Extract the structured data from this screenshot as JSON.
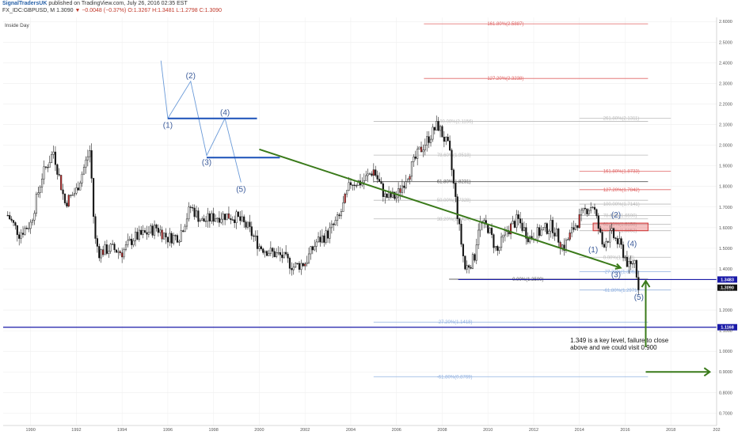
{
  "header": {
    "author": "SignalTradersUK",
    "published": "published on TradingView.com, July 26, 2016 02:35 EST",
    "symbol": "FX_IDC:GBPUSD, M",
    "last": "1.3090",
    "change": "▼ −0.0048 (−0.37%)",
    "ohlc": "O:1.3267 H:1.3481 L:1.2798 C:1.3090"
  },
  "indicator_label": "Inside Day",
  "chart_data": {
    "type": "candlestick",
    "symbol": "GBPUSD",
    "timeframe": "Monthly",
    "x_ticks": [
      "1990",
      "1992",
      "1994",
      "1996",
      "1998",
      "2000",
      "2002",
      "2004",
      "2006",
      "2008",
      "2010",
      "2012",
      "2014",
      "2016",
      "2018",
      "202"
    ],
    "y_ticks": [
      "2.6000",
      "2.5000",
      "2.4000",
      "2.3000",
      "2.2000",
      "2.1000",
      "2.0000",
      "1.9000",
      "1.8000",
      "1.7000",
      "1.6000",
      "1.5000",
      "1.4000",
      "1.3000",
      "1.2000",
      "1.1000",
      "1.0000",
      "0.9000",
      "0.8000",
      "0.7000"
    ],
    "ylim": [
      0.64,
      2.62
    ],
    "xlim": [
      1988.8,
      2020.0
    ],
    "price_path": [
      [
        1989.0,
        1.66
      ],
      [
        1989.5,
        1.57
      ],
      [
        1990.0,
        1.62
      ],
      [
        1990.5,
        1.85
      ],
      [
        1991.0,
        1.97
      ],
      [
        1991.5,
        1.72
      ],
      [
        1992.0,
        1.78
      ],
      [
        1992.6,
        1.98
      ],
      [
        1992.8,
        1.55
      ],
      [
        1993.0,
        1.48
      ],
      [
        1993.5,
        1.5
      ],
      [
        1994.0,
        1.48
      ],
      [
        1994.5,
        1.55
      ],
      [
        1995.0,
        1.57
      ],
      [
        1995.5,
        1.6
      ],
      [
        1996.0,
        1.55
      ],
      [
        1996.5,
        1.56
      ],
      [
        1997.0,
        1.7
      ],
      [
        1997.5,
        1.63
      ],
      [
        1998.0,
        1.65
      ],
      [
        1998.5,
        1.66
      ],
      [
        1999.0,
        1.65
      ],
      [
        1999.5,
        1.6
      ],
      [
        2000.0,
        1.51
      ],
      [
        2000.5,
        1.48
      ],
      [
        2001.0,
        1.46
      ],
      [
        2001.5,
        1.41
      ],
      [
        2002.0,
        1.43
      ],
      [
        2002.5,
        1.53
      ],
      [
        2003.0,
        1.57
      ],
      [
        2003.5,
        1.65
      ],
      [
        2004.0,
        1.82
      ],
      [
        2004.5,
        1.82
      ],
      [
        2005.0,
        1.88
      ],
      [
        2005.5,
        1.75
      ],
      [
        2006.0,
        1.75
      ],
      [
        2006.5,
        1.86
      ],
      [
        2007.0,
        1.97
      ],
      [
        2007.5,
        2.05
      ],
      [
        2007.8,
        2.1
      ],
      [
        2008.3,
        1.98
      ],
      [
        2008.8,
        1.55
      ],
      [
        2009.0,
        1.4
      ],
      [
        2009.4,
        1.45
      ],
      [
        2009.6,
        1.62
      ],
      [
        2010.0,
        1.6
      ],
      [
        2010.4,
        1.48
      ],
      [
        2010.8,
        1.58
      ],
      [
        2011.3,
        1.64
      ],
      [
        2011.8,
        1.55
      ],
      [
        2012.3,
        1.58
      ],
      [
        2012.8,
        1.61
      ],
      [
        2013.3,
        1.5
      ],
      [
        2013.8,
        1.61
      ],
      [
        2014.3,
        1.69
      ],
      [
        2014.6,
        1.71
      ],
      [
        2015.0,
        1.52
      ],
      [
        2015.4,
        1.57
      ],
      [
        2015.8,
        1.51
      ],
      [
        2016.2,
        1.4
      ],
      [
        2016.4,
        1.45
      ],
      [
        2016.6,
        1.309
      ]
    ],
    "fib_levels": [
      {
        "label": "161.80%(2.5887)",
        "value": 2.5887,
        "color": "#e06666",
        "x0": 2007.2,
        "x1": 2017.0
      },
      {
        "label": "127.20%(2.3238)",
        "value": 2.3238,
        "color": "#e06666",
        "x0": 2007.2,
        "x1": 2017.0
      },
      {
        "label": "100.00%(2.1156)",
        "value": 2.1156,
        "color": "#bbbbbb",
        "x0": 2005.0,
        "x1": 2017.0
      },
      {
        "label": "78.60%(1.9518)",
        "value": 1.9518,
        "color": "#bbbbbb",
        "x0": 2005.0,
        "x1": 2017.0
      },
      {
        "label": "61.80%(1.8231)",
        "value": 1.8231,
        "color": "#555555",
        "x0": 2005.0,
        "x1": 2017.0
      },
      {
        "label": "50.00%(1.7328)",
        "value": 1.7328,
        "color": "#bbbbbb",
        "x0": 2005.0,
        "x1": 2017.0
      },
      {
        "label": "38.20%(1.6424)",
        "value": 1.6424,
        "color": "#bbbbbb",
        "x0": 2005.0,
        "x1": 2017.0
      },
      {
        "label": "0.00%(1.3500)",
        "value": 1.35,
        "color": "#333333",
        "x0": 2008.3,
        "x1": 2017.0
      },
      {
        "label": "-27.20%(1.1418)",
        "value": 1.1418,
        "color": "#8fb0e0",
        "x0": 2005.0,
        "x1": 2017.0
      },
      {
        "label": "-61.80%(0.8769)",
        "value": 0.8769,
        "color": "#8fb0e0",
        "x0": 2005.0,
        "x1": 2017.0
      },
      {
        "label": "261.80%(2.1311)",
        "value": 2.1311,
        "color": "#bbbbbb",
        "x0": 2014.0,
        "x1": 2018.0
      },
      {
        "label": "161.80%(1.8733)",
        "value": 1.8733,
        "color": "#e06666",
        "x0": 2014.0,
        "x1": 2018.0
      },
      {
        "label": "127.20%(1.7842)",
        "value": 1.7842,
        "color": "#e06666",
        "x0": 2014.0,
        "x1": 2018.0
      },
      {
        "label": "100.00%(1.7141)",
        "value": 1.7141,
        "color": "#bbbbbb",
        "x0": 2014.0,
        "x1": 2018.0
      },
      {
        "label": "78.60%(1.6590)",
        "value": 1.659,
        "color": "#bbbbbb",
        "x0": 2014.0,
        "x1": 2018.0
      },
      {
        "label": "61.80%(1.6158)",
        "value": 1.6158,
        "color": "#bbbbbb",
        "x0": 2014.0,
        "x1": 2018.0
      },
      {
        "label": "50.00%(1.5852)",
        "value": 1.5852,
        "color": "#bbbbbb",
        "x0": 2014.0,
        "x1": 2018.0
      },
      {
        "label": "0.00%(1.4563)",
        "value": 1.4563,
        "color": "#bbbbbb",
        "x0": 2014.0,
        "x1": 2018.0
      },
      {
        "label": "-27.20%(1.3862)",
        "value": 1.3862,
        "color": "#8fb0e0",
        "x0": 2014.0,
        "x1": 2018.0
      },
      {
        "label": "-61.80%(1.2971)",
        "value": 1.2971,
        "color": "#8fb0e0",
        "x0": 2014.0,
        "x1": 2018.0
      }
    ],
    "horizontal_lines": [
      {
        "value": 1.3483,
        "color": "#1a1aa8",
        "tag": "1.3483",
        "x0": 2008.7
      },
      {
        "value": 1.1168,
        "color": "#1a1aa8",
        "tag": "1.1168",
        "x0": 1988.8
      }
    ],
    "last_price_tag": {
      "value": 1.309,
      "label": "1.3090"
    },
    "resistance_zone": {
      "x0": 2014.6,
      "x1": 2017.0,
      "y_low": 1.585,
      "y_high": 1.622
    },
    "trendline": {
      "x0": 2000.0,
      "y0": 1.98,
      "x1": 2015.8,
      "y1": 1.405
    },
    "example_wave": {
      "points": [
        [
          1996.0,
          2.13
        ],
        [
          1997.0,
          2.31
        ],
        [
          1997.7,
          1.95
        ],
        [
          1998.5,
          2.13
        ],
        [
          1999.2,
          1.82
        ]
      ],
      "lead_in": [
        1995.7,
        2.41
      ],
      "labels": [
        "(1)",
        "(2)",
        "(3)",
        "(4)",
        "(5)"
      ],
      "lines": [
        {
          "x0": 1996.0,
          "x1": 1999.9,
          "y": 2.13
        },
        {
          "x0": 1997.7,
          "x1": 2000.9,
          "y": 1.94
        }
      ]
    },
    "wave_labels": [
      {
        "label": "(1)",
        "x": 2014.6,
        "y": 1.48
      },
      {
        "label": "(2)",
        "x": 2015.6,
        "y": 1.65
      },
      {
        "label": "(3)",
        "x": 2015.6,
        "y": 1.36
      },
      {
        "label": "(4)",
        "x": 2016.3,
        "y": 1.51
      },
      {
        "label": "(5)",
        "x": 2016.6,
        "y": 1.25
      }
    ],
    "annotation": [
      "1.349 is a key level, failure to close",
      "above and we could visit 0.900"
    ],
    "colors": {
      "up": "#ffffff",
      "down": "#111111",
      "accent_red": "#e06666",
      "trend": "#3a7a1a",
      "level_blue": "#1a1aa8"
    }
  }
}
